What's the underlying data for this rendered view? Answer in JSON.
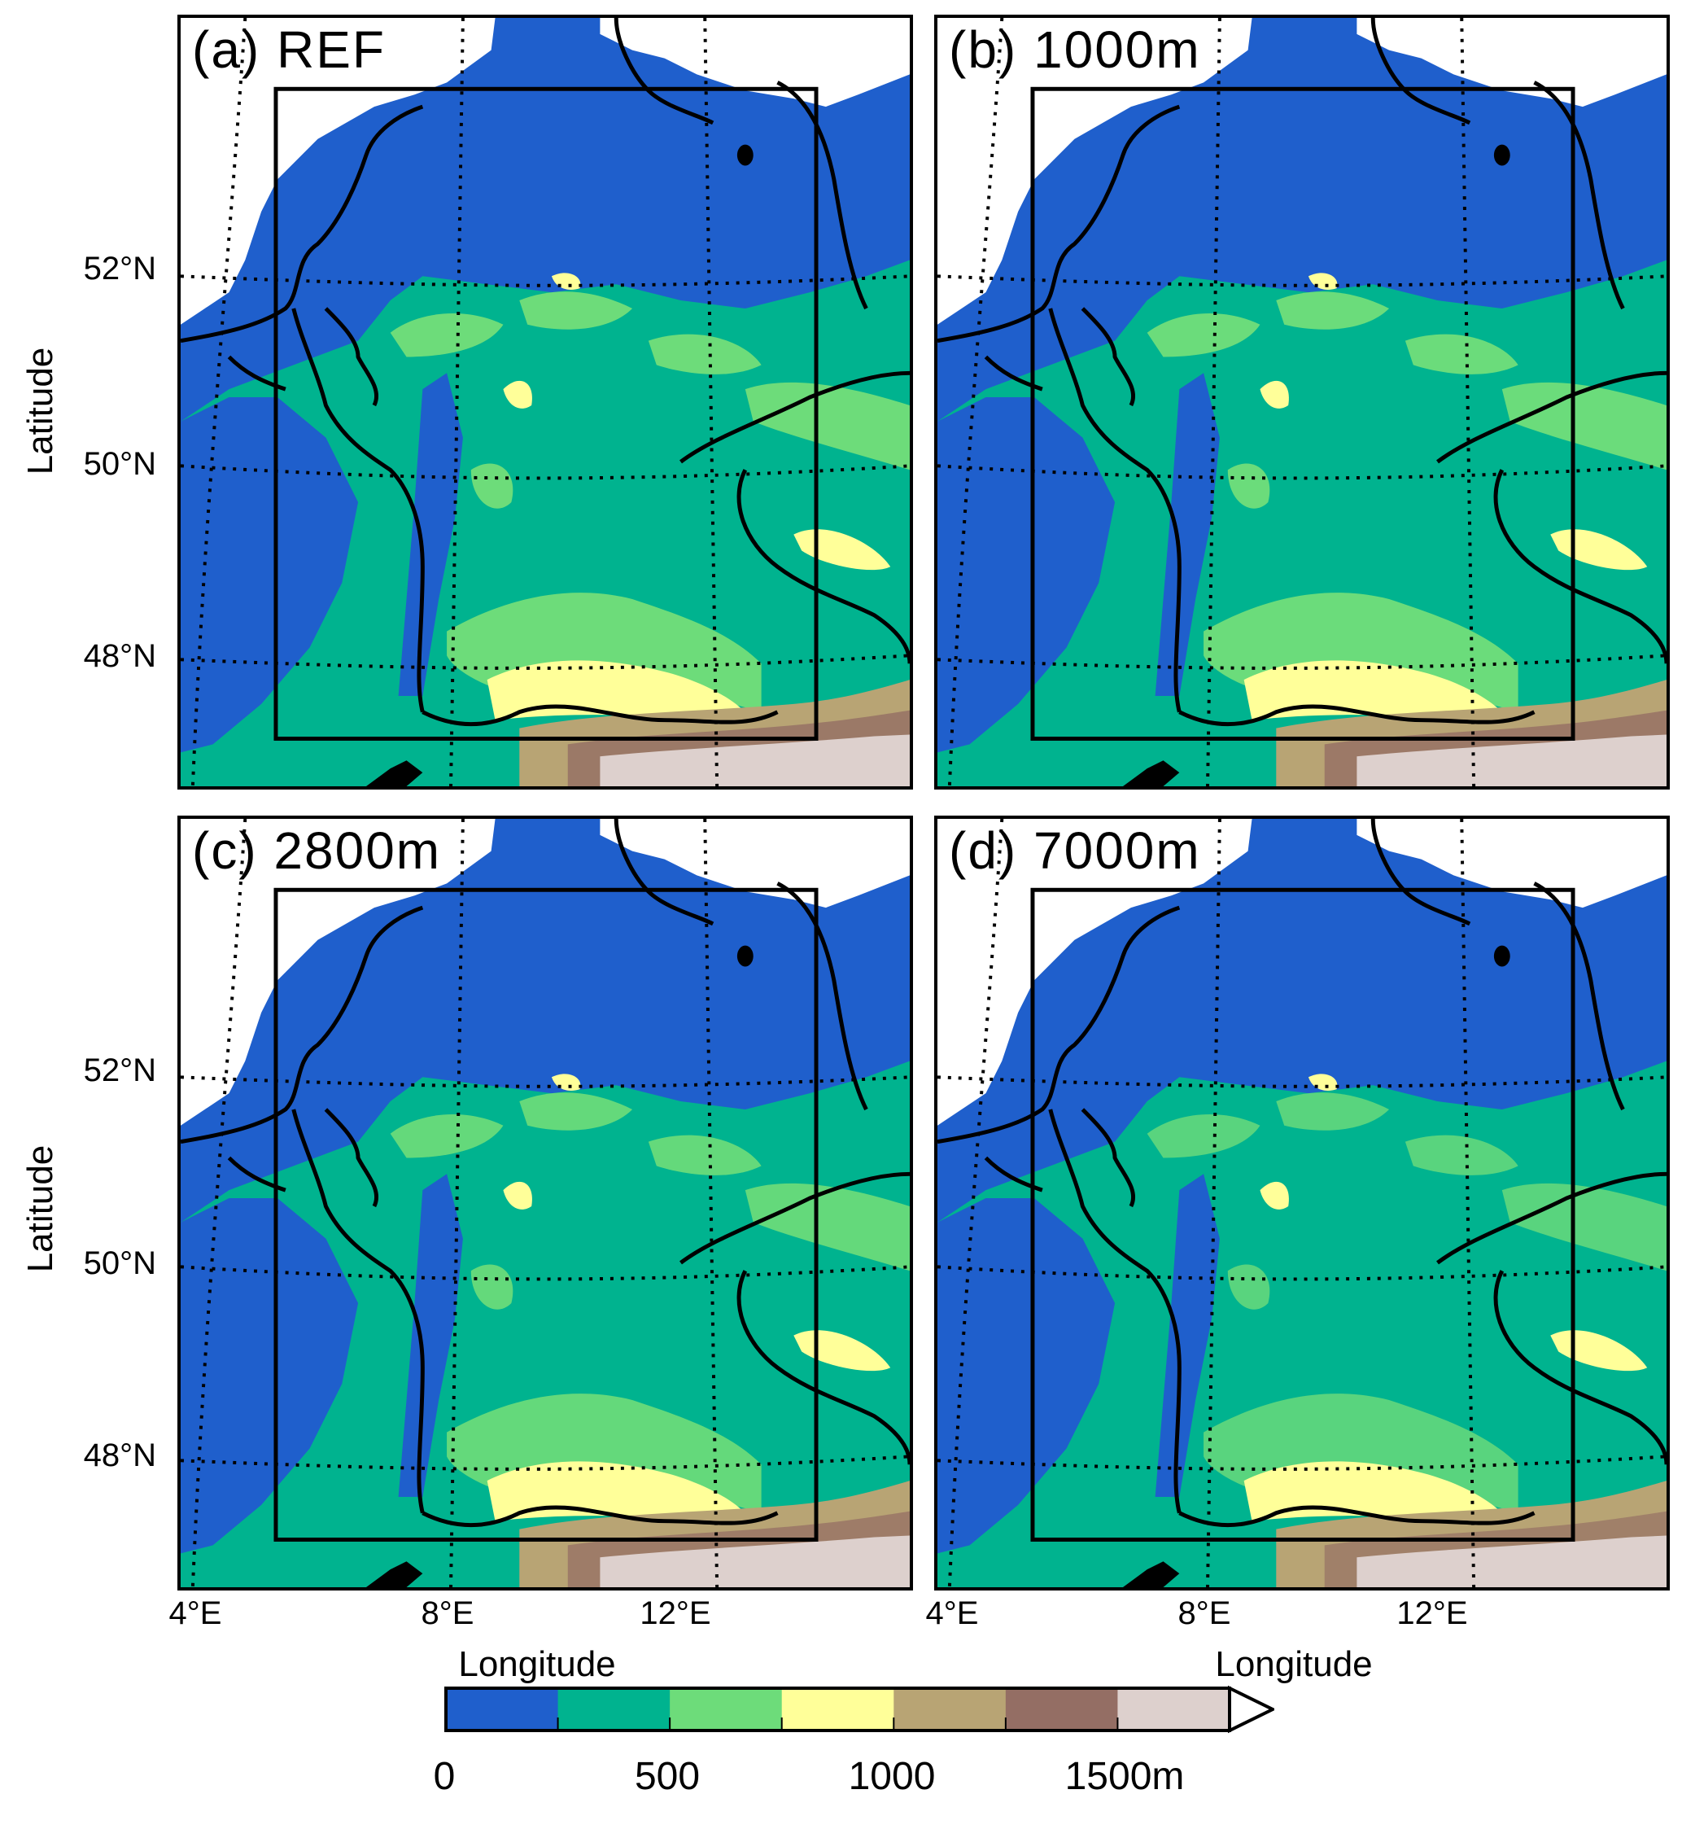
{
  "panels": [
    {
      "id": "a",
      "title": "(a) REF"
    },
    {
      "id": "b",
      "title": "(b) 1000m"
    },
    {
      "id": "c",
      "title": "(c) 2800m"
    },
    {
      "id": "d",
      "title": "(d) 7000m"
    }
  ],
  "axes": {
    "y_title": "Latitude",
    "x_title": "Longitude",
    "lat_ticks": [
      "52°N",
      "50°N",
      "48°N"
    ],
    "lon_ticks": [
      "4°E",
      "8°E",
      "12°E"
    ]
  },
  "legend": {
    "colors": [
      "#1f5fcc",
      "#00b38f",
      "#6ddc7a",
      "#ffff99",
      "#b8a474",
      "#946e64",
      "#ddd0cd"
    ],
    "labels": [
      "0",
      "500",
      "1000",
      "1500m"
    ]
  },
  "map_colors": {
    "water": "#1f5fcc",
    "white": "#ffffff"
  }
}
